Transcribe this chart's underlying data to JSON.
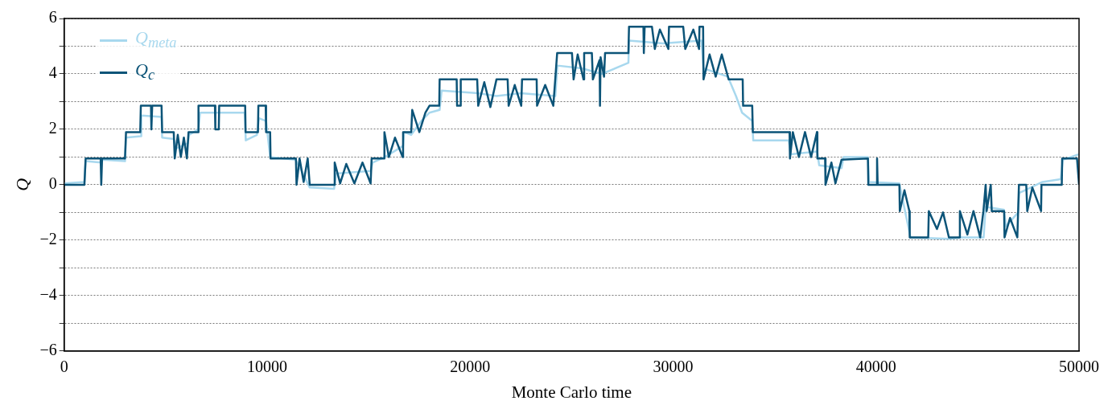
{
  "chart_data": {
    "type": "line",
    "xlabel": "Monte Carlo time",
    "ylabel": "Q",
    "xlim": [
      0,
      50000
    ],
    "xticks": [
      0,
      10000,
      20000,
      30000,
      40000,
      50000
    ],
    "ylim": [
      -6,
      6
    ],
    "yticks": [
      -6,
      {
        "value": -5,
        "label": null
      },
      -4,
      {
        "value": -3,
        "label": null
      },
      -2,
      {
        "value": -1,
        "label": null
      },
      0,
      {
        "value": 1,
        "label": null
      },
      2,
      {
        "value": 3,
        "label": null
      },
      4,
      {
        "value": 5,
        "label": null
      },
      6
    ],
    "grid": "y",
    "legend": "top left",
    "line_style": "solid",
    "marker": "none",
    "series": [
      {
        "name": "Q$_{meta}$",
        "color": "#a8d8ee",
        "x": [
          0,
          1000,
          1060,
          1800,
          1900,
          3000,
          3050,
          3780,
          3800,
          4800,
          4830,
          5400,
          5500,
          6100,
          6150,
          6620,
          6700,
          8900,
          8950,
          9500,
          9600,
          9950,
          10150,
          11400,
          11700,
          12100,
          13300,
          13400,
          15100,
          15200,
          15800,
          16700,
          16750,
          17100,
          17600,
          18000,
          18500,
          18600,
          20400,
          21300,
          22500,
          24200,
          24300,
          25500,
          26500,
          27800,
          27830,
          29500,
          31400,
          31500,
          32700,
          33100,
          33400,
          33900,
          33950,
          35700,
          35800,
          37100,
          37200,
          38300,
          38400,
          39600,
          39650,
          41150,
          41300,
          41700,
          43600,
          44200,
          45300,
          45400,
          46300,
          46400,
          47000,
          47050,
          48200,
          49100,
          49200,
          50000
        ],
        "values": [
          0.05,
          0.1,
          0.85,
          0.8,
          0.9,
          0.85,
          1.7,
          1.75,
          2.5,
          2.45,
          1.7,
          1.65,
          1.3,
          1.5,
          1.8,
          2.0,
          2.6,
          2.6,
          1.6,
          1.8,
          2.4,
          2.3,
          1.0,
          0.9,
          0.5,
          -0.1,
          -0.15,
          0.4,
          0.5,
          0.8,
          1.0,
          1.4,
          1.9,
          1.8,
          2.3,
          2.6,
          2.7,
          3.4,
          3.3,
          3.2,
          3.3,
          3.2,
          4.3,
          4.2,
          4.0,
          4.4,
          5.2,
          5.1,
          5.2,
          4.2,
          3.9,
          3.2,
          2.6,
          2.3,
          1.6,
          1.6,
          1.1,
          1.2,
          0.7,
          0.6,
          1.0,
          1.0,
          0.1,
          0.05,
          -0.5,
          -1.9,
          -1.95,
          -1.9,
          -1.9,
          -0.8,
          -0.9,
          -1.5,
          -1.0,
          -0.3,
          0.1,
          0.2,
          0.9,
          1.1
        ]
      },
      {
        "name": "Q$_{c}$",
        "color": "#0c5478",
        "x": [
          0,
          1000,
          1060,
          1800,
          1830,
          1870,
          3000,
          3050,
          3750,
          3780,
          4280,
          4300,
          4340,
          4800,
          4830,
          5400,
          5450,
          5600,
          5750,
          5900,
          6050,
          6130,
          6600,
          6620,
          7430,
          7450,
          7620,
          7640,
          8920,
          8940,
          9550,
          9570,
          9930,
          9950,
          10150,
          10170,
          11420,
          11450,
          11600,
          11800,
          12000,
          12100,
          13300,
          13330,
          13600,
          13900,
          14300,
          14700,
          15100,
          15150,
          15760,
          15780,
          16000,
          16300,
          16680,
          16700,
          17100,
          17150,
          17500,
          17800,
          18000,
          18480,
          18500,
          19340,
          19360,
          19520,
          19540,
          20350,
          20400,
          20700,
          21000,
          21300,
          21850,
          21900,
          22200,
          22520,
          22560,
          23280,
          23300,
          23700,
          24100,
          24290,
          25020,
          25100,
          25300,
          25590,
          25620,
          26000,
          26050,
          26380,
          26400,
          26430,
          26600,
          26650,
          27800,
          27830,
          28540,
          28560,
          28600,
          28960,
          29100,
          29350,
          29770,
          29800,
          30500,
          30600,
          31000,
          31280,
          31300,
          31480,
          31500,
          31800,
          32100,
          32400,
          32740,
          33430,
          33450,
          33900,
          33930,
          35740,
          35760,
          35900,
          36200,
          36500,
          36800,
          37090,
          37110,
          37490,
          37510,
          37800,
          38000,
          38300,
          39600,
          39620,
          40030,
          40050,
          40080,
          41150,
          41170,
          41400,
          41640,
          41660,
          42570,
          42600,
          43000,
          43300,
          43590,
          44110,
          44130,
          44500,
          44800,
          45130,
          45290,
          45400,
          45450,
          45650,
          45700,
          46310,
          46330,
          46600,
          46960,
          47040,
          47400,
          47450,
          47700,
          48130,
          48150,
          49150,
          49170,
          49900,
          50000
        ],
        "values": [
          0,
          0,
          0.95,
          0.95,
          0,
          0.95,
          0.95,
          1.9,
          1.9,
          2.85,
          2.85,
          2,
          2.85,
          2.85,
          1.9,
          1.9,
          0.95,
          1.8,
          1,
          1.7,
          0.95,
          1.9,
          1.9,
          2.85,
          2.85,
          2,
          2,
          2.85,
          2.85,
          1.9,
          1.9,
          2.85,
          2.85,
          1.9,
          1.9,
          0.95,
          0.95,
          0,
          0.95,
          0.1,
          0.95,
          0,
          0,
          0.8,
          0.05,
          0.75,
          0.05,
          0.8,
          0.05,
          0.95,
          0.95,
          1.9,
          1,
          1.7,
          1,
          1.9,
          1.9,
          2.7,
          1.9,
          2.6,
          2.85,
          2.85,
          3.8,
          3.8,
          2.85,
          2.85,
          3.8,
          3.8,
          2.85,
          3.7,
          2.8,
          3.8,
          3.8,
          2.85,
          3.6,
          2.85,
          3.8,
          3.8,
          2.85,
          3.6,
          2.85,
          4.75,
          4.75,
          3.8,
          4.7,
          3.8,
          4.75,
          4.75,
          3.8,
          4.5,
          2.85,
          4.6,
          3.9,
          4.75,
          4.75,
          5.7,
          5.7,
          4.75,
          5.7,
          5.7,
          4.9,
          5.6,
          4.9,
          5.7,
          5.7,
          4.9,
          5.6,
          4.9,
          5.7,
          5.7,
          3.8,
          4.7,
          3.9,
          4.7,
          3.8,
          3.8,
          2.85,
          2.85,
          1.9,
          1.9,
          0.95,
          1.9,
          1,
          1.9,
          1,
          1.9,
          0.95,
          0.95,
          0,
          0.8,
          0.05,
          0.9,
          0.95,
          0,
          0,
          0.95,
          0,
          0,
          -0.95,
          -0.2,
          -0.95,
          -1.9,
          -1.9,
          -0.95,
          -1.6,
          -1,
          -1.9,
          -1.9,
          -0.95,
          -1.8,
          -0.95,
          -1.9,
          -0.95,
          0,
          -0.95,
          0,
          -0.95,
          -0.95,
          -1.9,
          -1.2,
          -1.9,
          0,
          0,
          -0.95,
          -0.1,
          -0.95,
          0,
          0,
          0.95,
          0.95,
          0
        ]
      }
    ]
  }
}
